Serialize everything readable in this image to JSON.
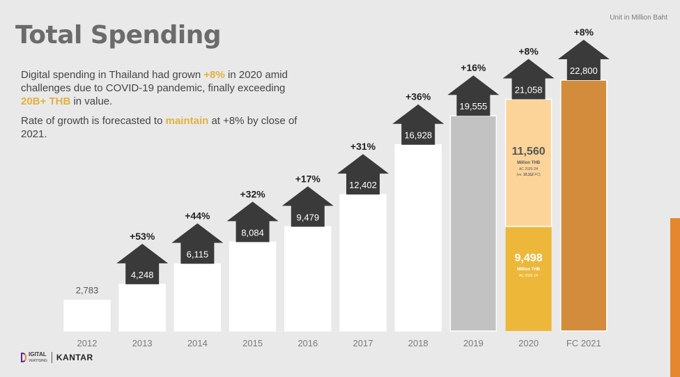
{
  "header": {
    "title": "Total Spending",
    "unit": "Unit in Million Baht"
  },
  "description": {
    "p1_a": "Digital spending in Thailand had grown ",
    "p1_hl1": "+8%",
    "p1_b": " in 2020 amid challenges due to COVID-19 pandemic, finally exceeding ",
    "p1_hl2": "20B+ THB",
    "p1_c": " in value.",
    "p2_a": "Rate of growth is forecasted to ",
    "p2_hl": "maintain",
    "p2_b": " at +8% by close of 2021."
  },
  "logos": {
    "digital_line1": "IGITAL",
    "digital_line2": "VERTISING",
    "kantar": "KANTAR"
  },
  "colors": {
    "bar_white": "#ffffff",
    "bar_grey": "#c2c2c2",
    "bar_2020_top": "#fcd49a",
    "bar_2020_bottom": "#edb73a",
    "bar_fc": "#d38c3c",
    "arrow": "#3a3a3a",
    "accent": "#e3b13f"
  },
  "chart_data": {
    "type": "bar",
    "categories": [
      "2012",
      "2013",
      "2014",
      "2015",
      "2016",
      "2017",
      "2018",
      "2019",
      "2020",
      "FC 2021"
    ],
    "values": [
      2783,
      4248,
      6115,
      8084,
      9479,
      12402,
      16928,
      19555,
      21058,
      22800
    ],
    "value_labels": [
      "2,783",
      "4,248",
      "6,115",
      "8,084",
      "9,479",
      "12,402",
      "16,928",
      "19,555",
      "21,058",
      "22,800"
    ],
    "growth": [
      "",
      "+53%",
      "+44%",
      "+32%",
      "+17%",
      "+31%",
      "+36%",
      "+16%",
      "+8%",
      "+8%"
    ],
    "stack_2020": [
      {
        "value": 9498,
        "label": "9,498",
        "sub1": "Million THB",
        "sub2": "AC 2020 1H"
      },
      {
        "value": 11560,
        "label": "11,560",
        "sub1": "Million THB",
        "sub2_a": "AC 2020 2H",
        "sub2_b_pre": "(vs. ",
        "sub2_b_bold": "10,112",
        "sub2_b_post": " FC)"
      }
    ]
  }
}
